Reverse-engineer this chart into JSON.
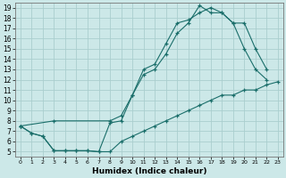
{
  "xlabel": "Humidex (Indice chaleur)",
  "background_color": "#cce8e8",
  "grid_color": "#aacece",
  "line_color": "#1a6e6a",
  "xlim": [
    -0.5,
    23.5
  ],
  "ylim": [
    4.5,
    19.5
  ],
  "xticks": [
    0,
    1,
    2,
    3,
    4,
    5,
    6,
    7,
    8,
    9,
    10,
    11,
    12,
    13,
    14,
    15,
    16,
    17,
    18,
    19,
    20,
    21,
    22,
    23
  ],
  "yticks": [
    5,
    6,
    7,
    8,
    9,
    10,
    11,
    12,
    13,
    14,
    15,
    16,
    17,
    18,
    19
  ],
  "line1_x": [
    0,
    1,
    2,
    3,
    4,
    5,
    6,
    7,
    8,
    9,
    10,
    11,
    12,
    13,
    14,
    15,
    16,
    17,
    18,
    19,
    20,
    21,
    22,
    23
  ],
  "line1_y": [
    7.5,
    6.8,
    6.5,
    5.1,
    5.1,
    5.1,
    5.1,
    5.0,
    5.0,
    6.0,
    6.5,
    7.0,
    7.5,
    8.0,
    8.5,
    9.0,
    9.5,
    10.0,
    10.5,
    10.5,
    11.0,
    11.0,
    11.5,
    11.8
  ],
  "line2_x": [
    0,
    1,
    2,
    3,
    4,
    5,
    6,
    7,
    8,
    9,
    10,
    11,
    12,
    13,
    14,
    15,
    16,
    17,
    18,
    19,
    20,
    21,
    22
  ],
  "line2_y": [
    7.5,
    6.8,
    6.5,
    5.1,
    5.1,
    5.1,
    5.1,
    5.0,
    7.8,
    8.0,
    10.5,
    13.0,
    13.5,
    15.5,
    17.5,
    17.8,
    18.5,
    19.0,
    18.5,
    17.5,
    15.0,
    13.0,
    12.0
  ],
  "line3_x": [
    0,
    3,
    8,
    9,
    10,
    11,
    12,
    13,
    14,
    15,
    16,
    17,
    18,
    19,
    20,
    21,
    22
  ],
  "line3_y": [
    7.5,
    8.0,
    8.0,
    8.5,
    10.5,
    12.5,
    13.0,
    14.5,
    16.5,
    17.5,
    19.2,
    18.5,
    18.5,
    17.5,
    17.5,
    15.0,
    13.0
  ]
}
